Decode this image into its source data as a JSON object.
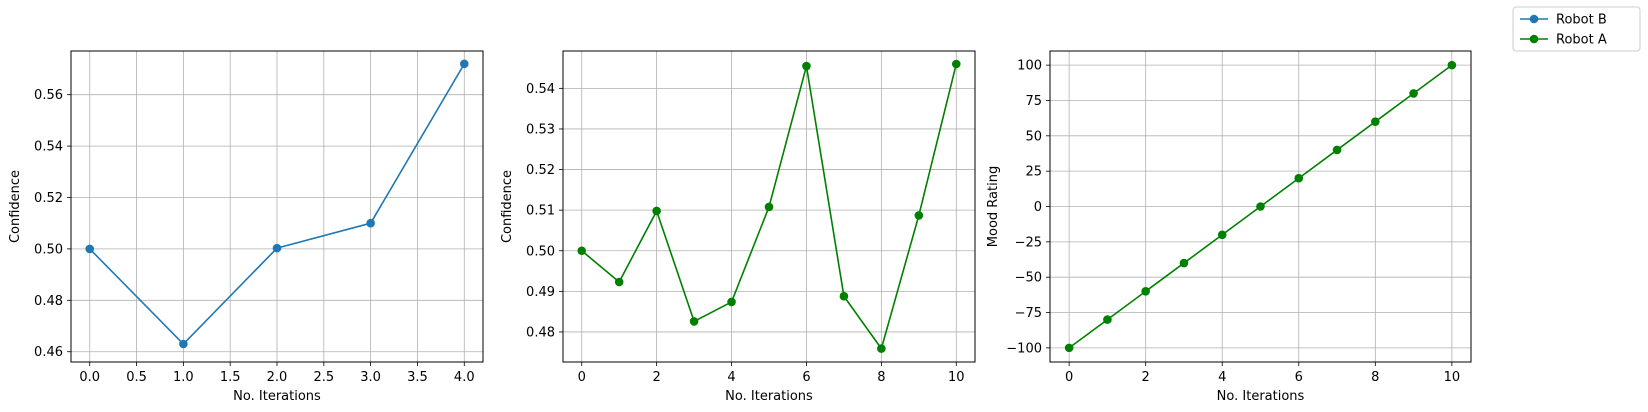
{
  "legend": {
    "entries": [
      {
        "name": "Robot B",
        "color": "#1f77b4",
        "marker": "circle"
      },
      {
        "name": "Robot A",
        "color": "#008000",
        "marker": "circle"
      }
    ],
    "placement": "top-right"
  },
  "chart_data": [
    {
      "type": "line",
      "title": "",
      "xlabel": "No. Iterations",
      "ylabel": "Confidence",
      "xlim": [
        -0.2,
        4.2
      ],
      "ylim": [
        0.456,
        0.577
      ],
      "xticks": [
        0.0,
        0.5,
        1.0,
        1.5,
        2.0,
        2.5,
        3.0,
        3.5,
        4.0
      ],
      "xtick_labels": [
        "0.0",
        "0.5",
        "1.0",
        "1.5",
        "2.0",
        "2.5",
        "3.0",
        "3.5",
        "4.0"
      ],
      "yticks": [
        0.46,
        0.48,
        0.5,
        0.52,
        0.54,
        0.56
      ],
      "ytick_labels": [
        "0.46",
        "0.48",
        "0.50",
        "0.52",
        "0.54",
        "0.56"
      ],
      "grid": true,
      "series": [
        {
          "name": "Robot B",
          "color": "#1f77b4",
          "x": [
            0,
            1,
            2,
            3,
            4
          ],
          "y": [
            0.5,
            0.463,
            0.5003,
            0.51,
            0.572
          ]
        }
      ]
    },
    {
      "type": "line",
      "title": "",
      "xlabel": "No. Iterations",
      "ylabel": "Confidence",
      "xlim": [
        -0.5,
        10.5
      ],
      "ylim": [
        0.4726,
        0.5492
      ],
      "xticks": [
        0,
        2,
        4,
        6,
        8,
        10
      ],
      "xtick_labels": [
        "0",
        "2",
        "4",
        "6",
        "8",
        "10"
      ],
      "yticks": [
        0.48,
        0.49,
        0.5,
        0.51,
        0.52,
        0.53,
        0.54
      ],
      "ytick_labels": [
        "0.48",
        "0.49",
        "0.50",
        "0.51",
        "0.52",
        "0.53",
        "0.54"
      ],
      "grid": true,
      "series": [
        {
          "name": "Robot A",
          "color": "#008000",
          "x": [
            0,
            1,
            2,
            3,
            4,
            5,
            6,
            7,
            8,
            9,
            10
          ],
          "y": [
            0.5,
            0.4923,
            0.5098,
            0.4826,
            0.4874,
            0.5108,
            0.5455,
            0.4888,
            0.4759,
            0.5087,
            0.546
          ]
        }
      ]
    },
    {
      "type": "line",
      "title": "",
      "xlabel": "No. Iterations",
      "ylabel": "Mood Rating",
      "xlim": [
        -0.5,
        10.5
      ],
      "ylim": [
        -110,
        110
      ],
      "xticks": [
        0,
        2,
        4,
        6,
        8,
        10
      ],
      "xtick_labels": [
        "0",
        "2",
        "4",
        "6",
        "8",
        "10"
      ],
      "yticks": [
        -100,
        -75,
        -50,
        -25,
        0,
        25,
        50,
        75,
        100
      ],
      "ytick_labels": [
        "−100",
        "−75",
        "−50",
        "−25",
        "0",
        "25",
        "50",
        "75",
        "100"
      ],
      "grid": true,
      "series": [
        {
          "name": "Robot A",
          "color": "#008000",
          "x": [
            0,
            1,
            2,
            3,
            4,
            5,
            6,
            7,
            8,
            9,
            10
          ],
          "y": [
            -100,
            -80,
            -60,
            -40,
            -20,
            0,
            20,
            40,
            60,
            80,
            100
          ]
        }
      ]
    }
  ]
}
